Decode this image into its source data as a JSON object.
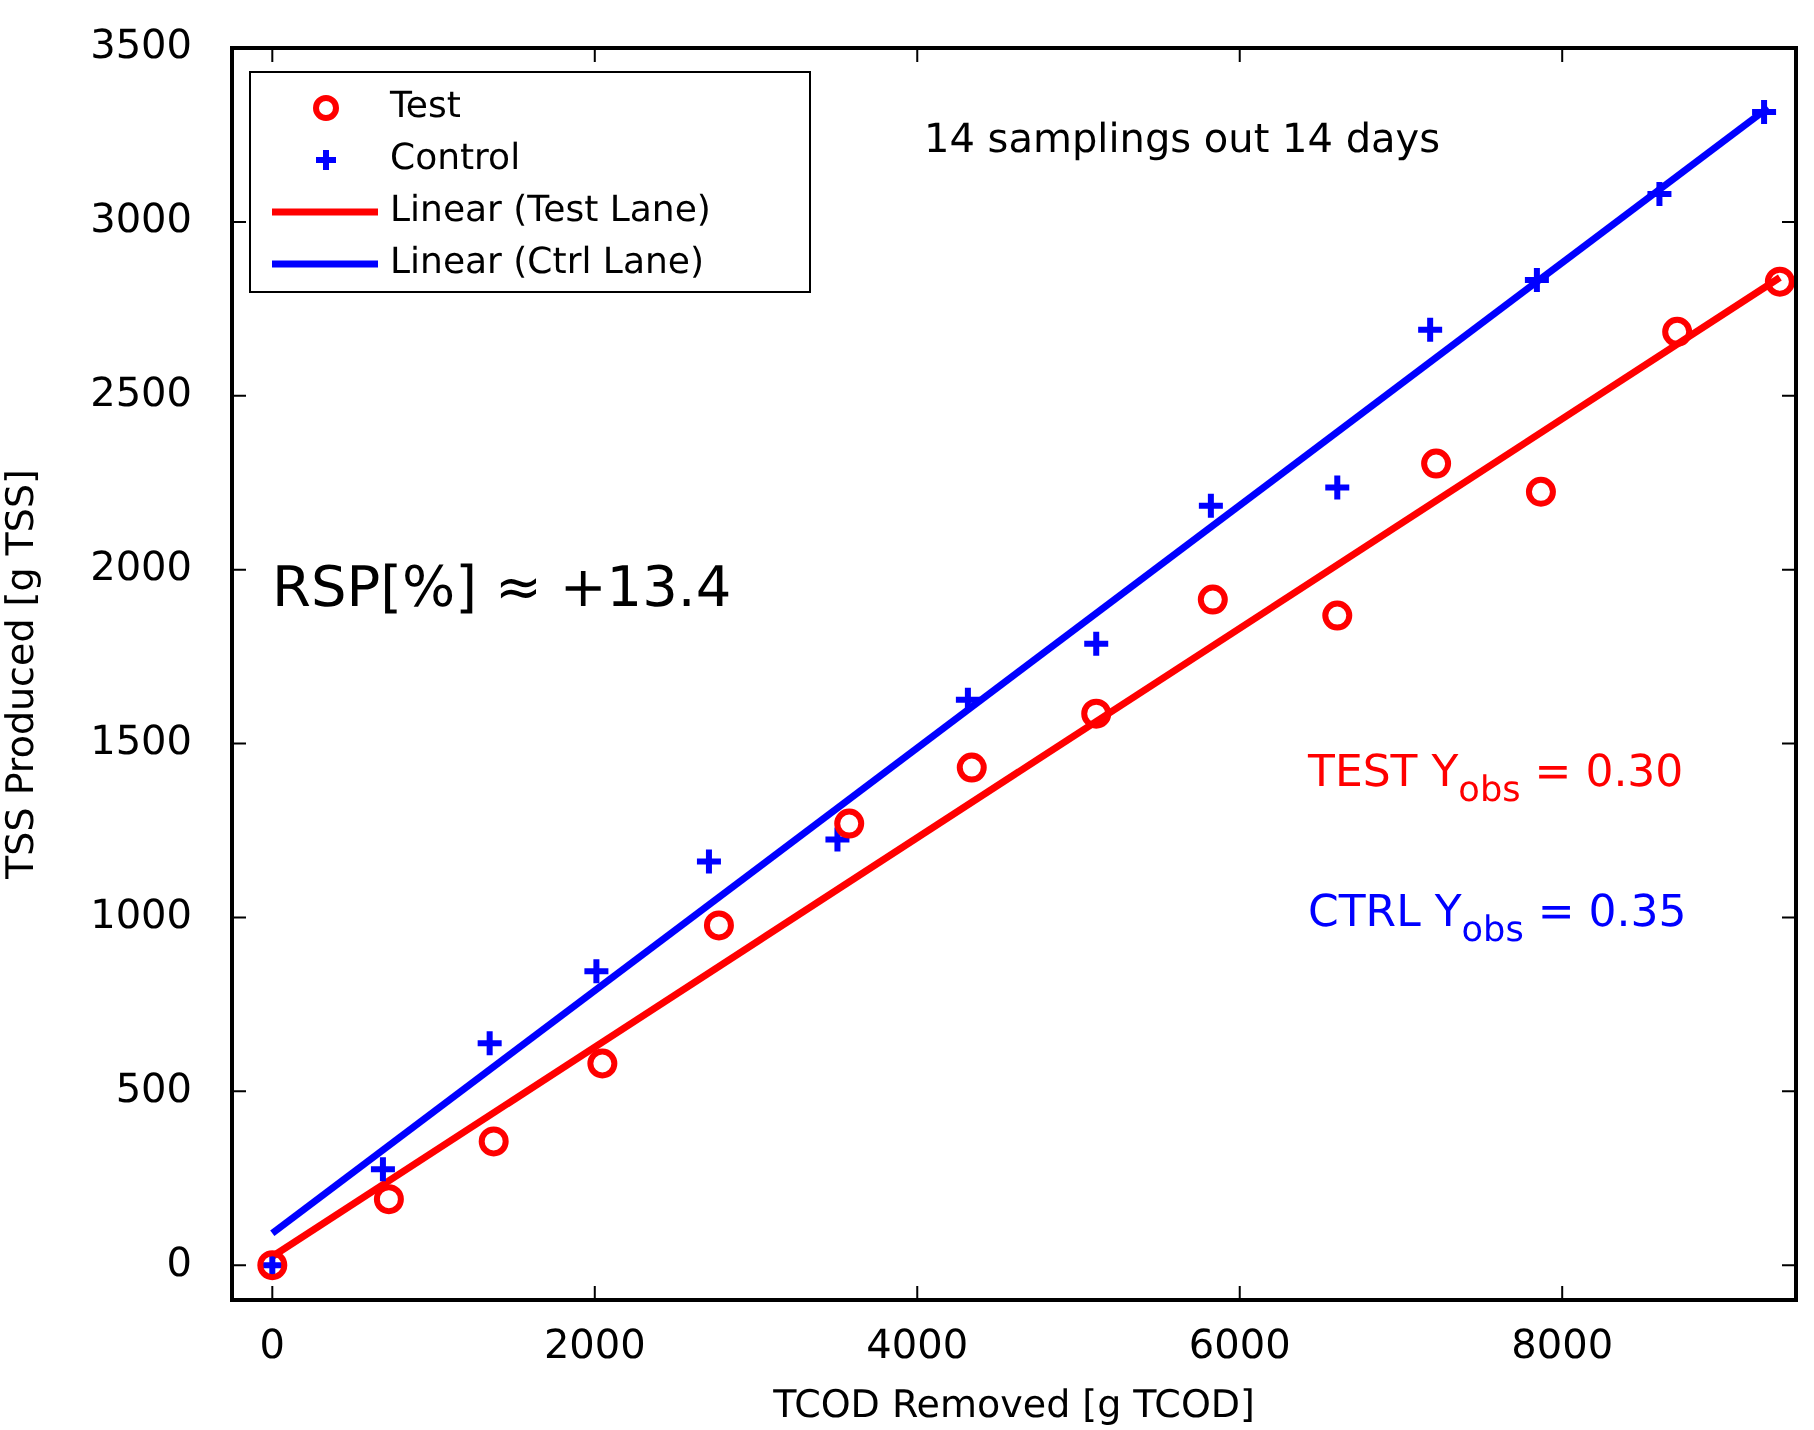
{
  "chart_data": {
    "type": "scatter",
    "xlabel": "TCOD Removed [g TCOD]",
    "ylabel": "TSS Produced [g TSS]",
    "xlim": [
      -250,
      9450
    ],
    "ylim": [
      -100,
      3500
    ],
    "xticks": [
      0,
      2000,
      4000,
      6000,
      8000
    ],
    "yticks": [
      0,
      500,
      1000,
      1500,
      2000,
      2500,
      3000,
      3500
    ],
    "grid": false,
    "legend": "top left",
    "series": [
      {
        "name": "Test",
        "marker": "circle",
        "color": "#ff0000",
        "x": [
          0,
          723,
          1373,
          2047,
          2770,
          3578,
          4338,
          5110,
          5833,
          6605,
          7218,
          7868,
          8713,
          9350
        ],
        "values": [
          0,
          190,
          356,
          580,
          977,
          1270,
          1431,
          1586,
          1914,
          1868,
          2305,
          2224,
          2684,
          2828
        ]
      },
      {
        "name": "Control",
        "marker": "cross",
        "color": "#0000ff",
        "x": [
          0,
          686,
          1348,
          2010,
          2708,
          3505,
          4314,
          5110,
          5821,
          6605,
          7181,
          7843,
          8603,
          9252
        ],
        "values": [
          0,
          276,
          638,
          845,
          1161,
          1224,
          1626,
          1787,
          2184,
          2236,
          2690,
          2833,
          3080,
          3316
        ]
      },
      {
        "name": "Linear (Test Lane)",
        "type": "line",
        "marker": "none",
        "color": "#ff0000",
        "x": [
          0,
          9350
        ],
        "values": [
          25,
          2840
        ]
      },
      {
        "name": "Linear (Ctrl Lane)",
        "type": "line",
        "marker": "none",
        "color": "#0000ff",
        "x": [
          0,
          9277
        ],
        "values": [
          92,
          3328
        ]
      }
    ],
    "annotations": [
      "14 samplings out 14 days",
      "RSP[%] ≈ +13.4",
      "TEST Y$_{obs}$ = 0.30",
      "CTRL Y$_{obs}$ = 0.35"
    ]
  }
}
